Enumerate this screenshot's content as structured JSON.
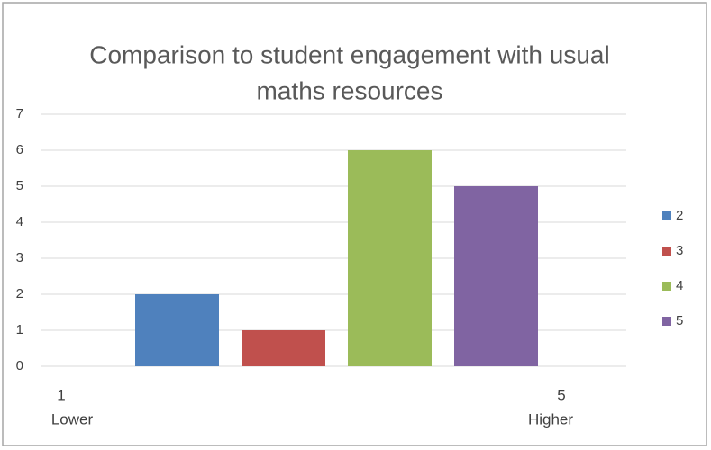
{
  "chart_data": {
    "type": "bar",
    "title": [
      "Comparison to student engagement with usual",
      "maths resources"
    ],
    "series": [
      {
        "name": "2",
        "color": "#4f81bd",
        "values": [
          2
        ]
      },
      {
        "name": "3",
        "color": "#c0504d",
        "values": [
          1
        ]
      },
      {
        "name": "4",
        "color": "#9bbb59",
        "values": [
          6
        ]
      },
      {
        "name": "5",
        "color": "#8064a2",
        "values": [
          5
        ]
      }
    ],
    "ylim": [
      0,
      7
    ],
    "yticks": [
      0,
      1,
      2,
      3,
      4,
      5,
      6,
      7
    ],
    "grid": true,
    "legend": "right",
    "annotations": [
      "1",
      "Lower",
      "5",
      "Higher"
    ]
  }
}
